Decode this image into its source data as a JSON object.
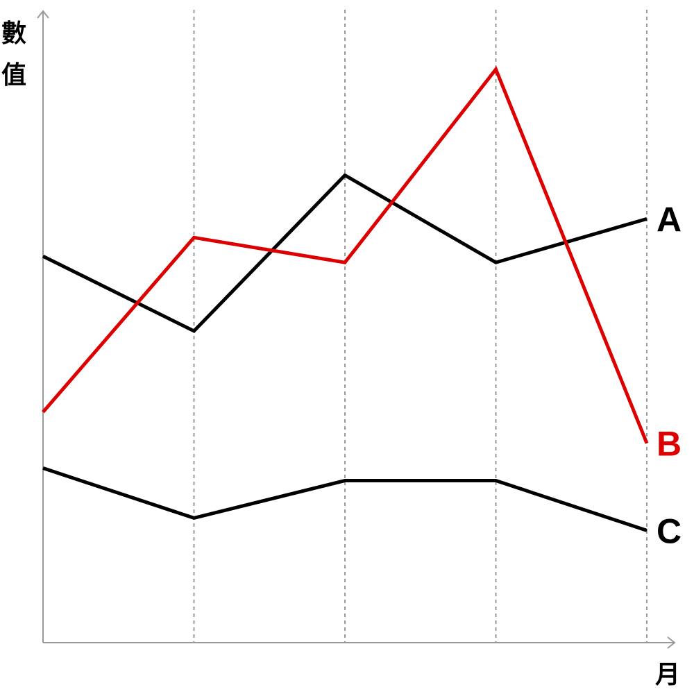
{
  "chart_data": {
    "type": "line",
    "title": "",
    "xlabel": "月",
    "ylabel_chars": [
      "數",
      "值"
    ],
    "x": [
      1,
      2,
      3,
      4,
      5
    ],
    "xlim": [
      1,
      5
    ],
    "ylim": [
      0,
      100
    ],
    "grid": {
      "vertical": true,
      "horizontal": false,
      "style": "dotted"
    },
    "legend": "inline-right",
    "series": [
      {
        "name": "A",
        "color": "#000000",
        "values": [
          62,
          50,
          75,
          61,
          68
        ]
      },
      {
        "name": "B",
        "color": "#dd0000",
        "values": [
          37,
          65,
          61,
          92,
          32
        ]
      },
      {
        "name": "C",
        "color": "#000000",
        "values": [
          28,
          20,
          26,
          26,
          18
        ]
      }
    ],
    "axis_color": "#999999",
    "grid_color": "#999999"
  }
}
